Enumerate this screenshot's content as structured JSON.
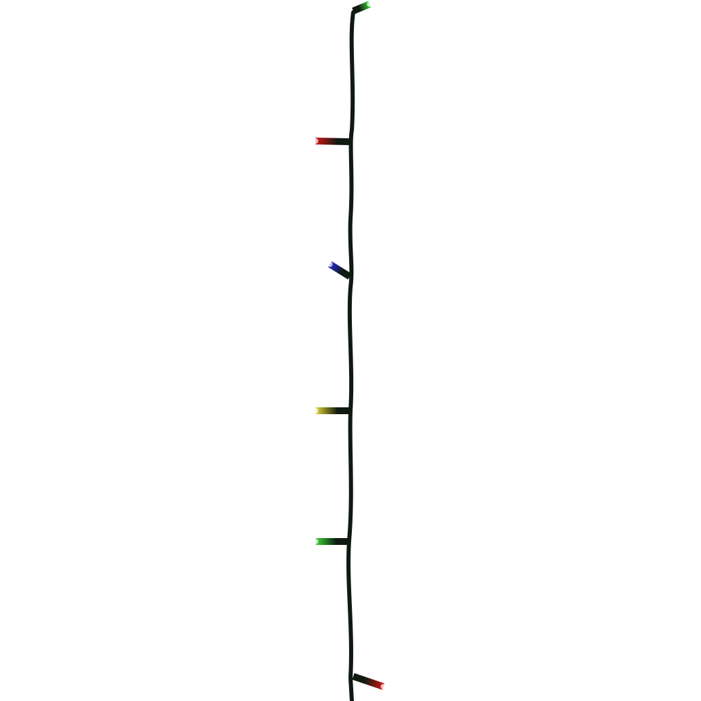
{
  "image": {
    "subject": "led-string-lights",
    "background_color": "#ffffff",
    "wire_color": "#0f1a10",
    "bulbs": [
      {
        "color": "green",
        "hex": "#3fd63a"
      },
      {
        "color": "red",
        "hex": "#d01818"
      },
      {
        "color": "blue",
        "hex": "#2a2ad8"
      },
      {
        "color": "yellow",
        "hex": "#e8d63a"
      },
      {
        "color": "green",
        "hex": "#3fd63a"
      },
      {
        "color": "red",
        "hex": "#d01818"
      }
    ]
  }
}
